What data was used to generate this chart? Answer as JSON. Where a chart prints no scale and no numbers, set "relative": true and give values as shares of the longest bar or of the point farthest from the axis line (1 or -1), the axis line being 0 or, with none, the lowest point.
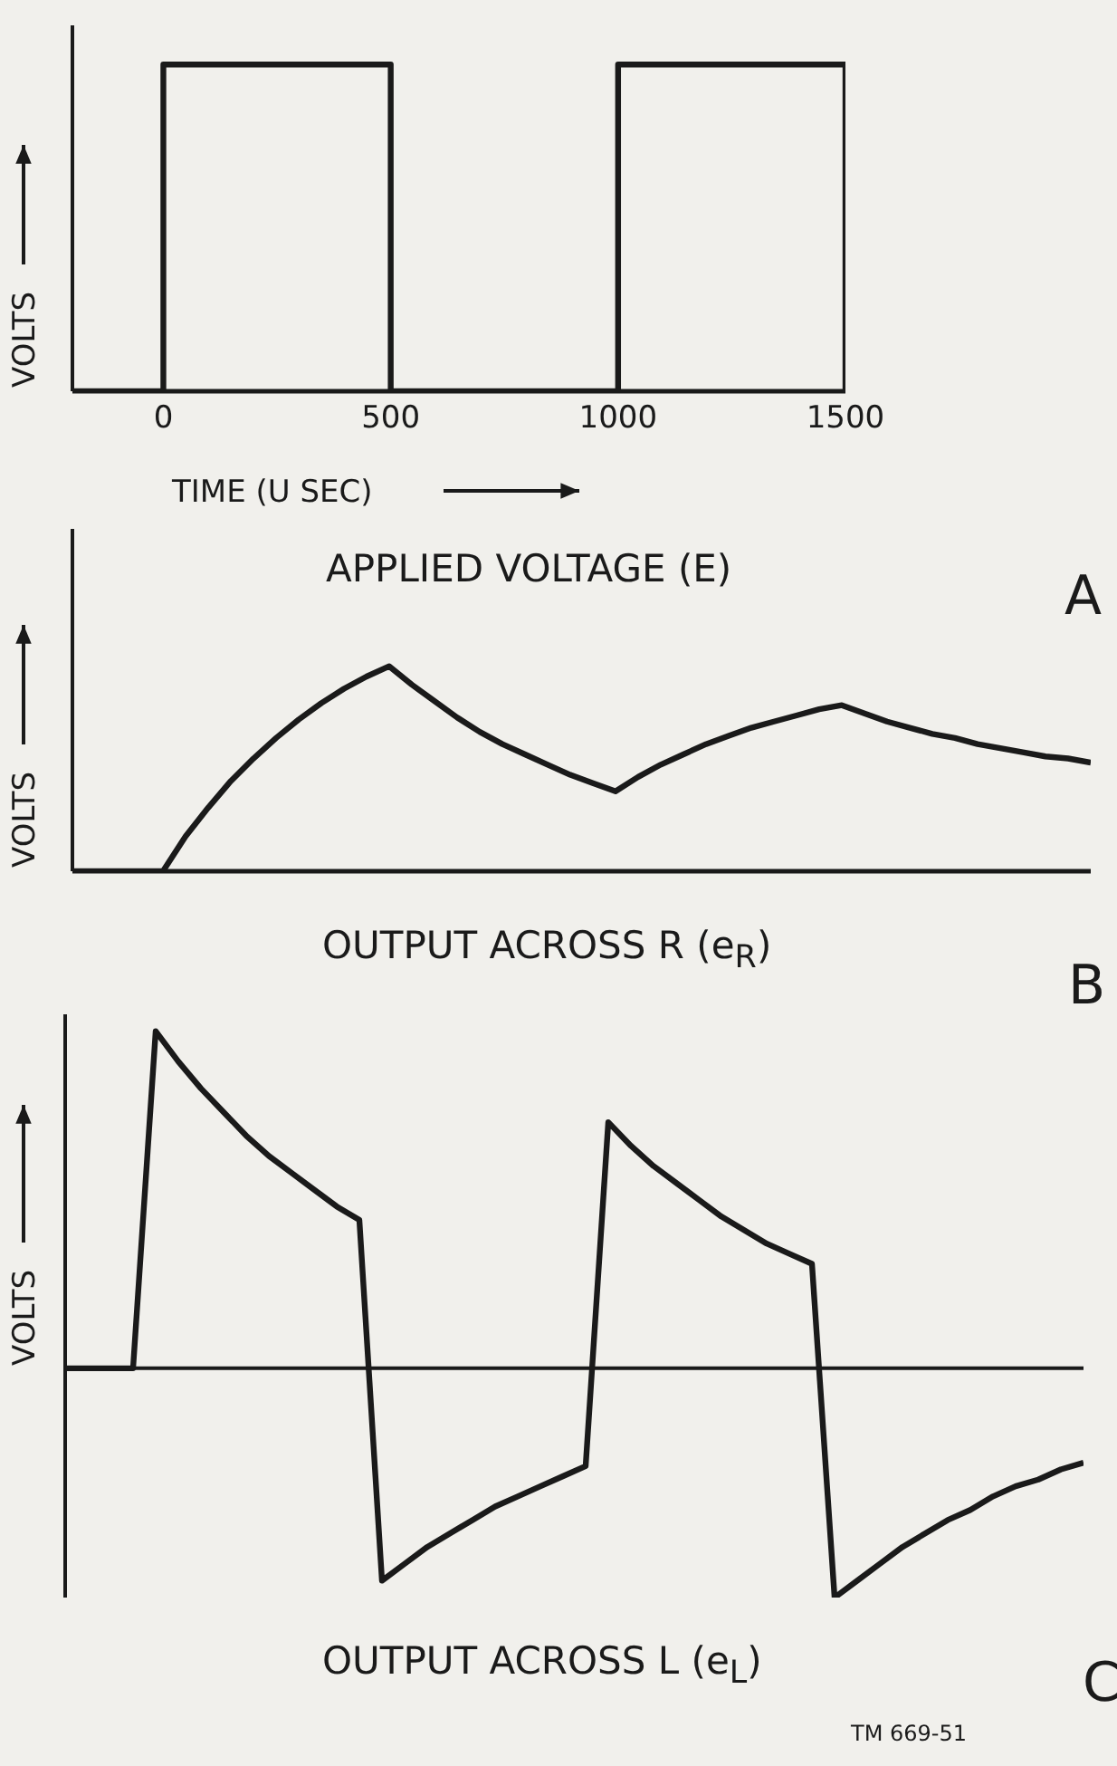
{
  "chart_data": [
    {
      "type": "line",
      "title": "APPLIED VOLTAGE (E)",
      "xlabel": "TIME (U SEC)",
      "ylabel": "VOLTS",
      "relative": true,
      "tick_labels": "x",
      "x": [
        -200,
        0,
        0,
        500,
        500,
        1000,
        1000,
        1500,
        1500
      ],
      "xlim": [
        -200,
        1500
      ],
      "xticks": [
        0,
        500,
        1000,
        1500
      ],
      "series": [
        {
          "color": "#1a1a1a",
          "values": [
            0,
            0,
            1,
            1,
            0,
            0,
            1,
            1,
            0
          ]
        }
      ],
      "annotations": [
        "A"
      ]
    },
    {
      "type": "line",
      "title": "OUTPUT ACROSS R (e$_{R}$)",
      "ylabel": "VOLTS",
      "relative": true,
      "categories": [
        null,
        null,
        null,
        null,
        null,
        null,
        null,
        null,
        null,
        null,
        null,
        null,
        null,
        null,
        null,
        null,
        null,
        null,
        null,
        null,
        null,
        null,
        null,
        null,
        null,
        null,
        null,
        null,
        null,
        null,
        null,
        null,
        null,
        null,
        null,
        null,
        null,
        null,
        null,
        null,
        null,
        null,
        null,
        null,
        null,
        null
      ],
      "series": [
        {
          "color": "#1a1a1a",
          "values": [
            0,
            0,
            0,
            0,
            0,
            0.17,
            0.31,
            0.44,
            0.55,
            0.65,
            0.74,
            0.82,
            0.89,
            0.95,
            1,
            0.91,
            0.83,
            0.75,
            0.68,
            0.62,
            0.57,
            0.52,
            0.47,
            0.43,
            0.39,
            0.46,
            0.52,
            0.57,
            0.62,
            0.66,
            0.7,
            0.73,
            0.76,
            0.79,
            0.81,
            0.77,
            0.73,
            0.7,
            0.67,
            0.65,
            0.62,
            0.6,
            0.58,
            0.56,
            0.55,
            0.53
          ]
        }
      ],
      "annotations": [
        "B"
      ]
    },
    {
      "type": "line",
      "title": "OUTPUT ACROSS L (e$_{L}$)",
      "ylabel": "VOLTS",
      "relative": true,
      "categories": [
        null,
        null,
        null,
        null,
        null,
        null,
        null,
        null,
        null,
        null,
        null,
        null,
        null,
        null,
        null,
        null,
        null,
        null,
        null,
        null,
        null,
        null,
        null,
        null,
        null,
        null,
        null,
        null,
        null,
        null,
        null,
        null,
        null,
        null,
        null,
        null,
        null,
        null,
        null,
        null,
        null,
        null,
        null,
        null,
        null,
        null
      ],
      "series": [
        {
          "color": "#1a1a1a",
          "values": [
            0,
            0,
            0,
            0,
            1,
            0.91,
            0.83,
            0.76,
            0.69,
            0.63,
            0.58,
            0.53,
            0.48,
            0.44,
            -0.63,
            -0.58,
            -0.53,
            -0.49,
            -0.45,
            -0.41,
            -0.38,
            -0.35,
            -0.32,
            -0.29,
            0.73,
            0.66,
            0.6,
            0.55,
            0.5,
            0.45,
            0.41,
            0.37,
            0.34,
            0.31,
            -0.68,
            -0.63,
            -0.58,
            -0.53,
            -0.49,
            -0.45,
            -0.42,
            -0.38,
            -0.35,
            -0.33,
            -0.3,
            -0.28
          ]
        }
      ],
      "annotations": [
        "C",
        "TM 669-51"
      ]
    }
  ]
}
